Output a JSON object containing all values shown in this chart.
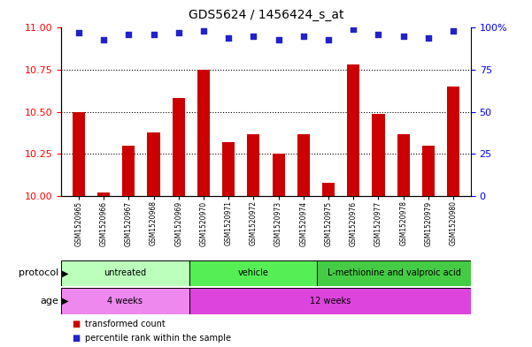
{
  "title": "GDS5624 / 1456424_s_at",
  "samples": [
    "GSM1520965",
    "GSM1520966",
    "GSM1520967",
    "GSM1520968",
    "GSM1520969",
    "GSM1520970",
    "GSM1520971",
    "GSM1520972",
    "GSM1520973",
    "GSM1520974",
    "GSM1520975",
    "GSM1520976",
    "GSM1520977",
    "GSM1520978",
    "GSM1520979",
    "GSM1520980"
  ],
  "transformed_count": [
    10.5,
    10.02,
    10.3,
    10.38,
    10.58,
    10.75,
    10.32,
    10.37,
    10.25,
    10.37,
    10.08,
    10.78,
    10.49,
    10.37,
    10.3,
    10.65
  ],
  "percentile_rank": [
    97,
    93,
    96,
    96,
    97,
    98,
    94,
    95,
    93,
    95,
    93,
    99,
    96,
    95,
    94,
    98
  ],
  "ylim_left": [
    10,
    11
  ],
  "ylim_right": [
    0,
    100
  ],
  "yticks_left": [
    10,
    10.25,
    10.5,
    10.75,
    11
  ],
  "yticks_right": [
    0,
    25,
    50,
    75,
    100
  ],
  "bar_color": "#cc0000",
  "dot_color": "#2222cc",
  "protocol_groups": [
    {
      "label": "untreated",
      "start": 0,
      "end": 5,
      "color": "#bbffbb"
    },
    {
      "label": "vehicle",
      "start": 5,
      "end": 10,
      "color": "#55ee55"
    },
    {
      "label": "L-methionine and valproic acid",
      "start": 10,
      "end": 16,
      "color": "#44cc44"
    }
  ],
  "age_groups": [
    {
      "label": "4 weeks",
      "start": 0,
      "end": 5,
      "color": "#ee88ee"
    },
    {
      "label": "12 weeks",
      "start": 5,
      "end": 16,
      "color": "#dd44dd"
    }
  ],
  "protocol_label": "protocol",
  "age_label": "age",
  "legend_bar_label": "transformed count",
  "legend_dot_label": "percentile rank within the sample",
  "bar_width": 0.5,
  "dot_size": 25,
  "bg_color": "#ffffff",
  "plot_bg": "#ffffff",
  "tick_label_area_color": "#d0d0d0",
  "grid_yticks": [
    10.25,
    10.5,
    10.75
  ]
}
